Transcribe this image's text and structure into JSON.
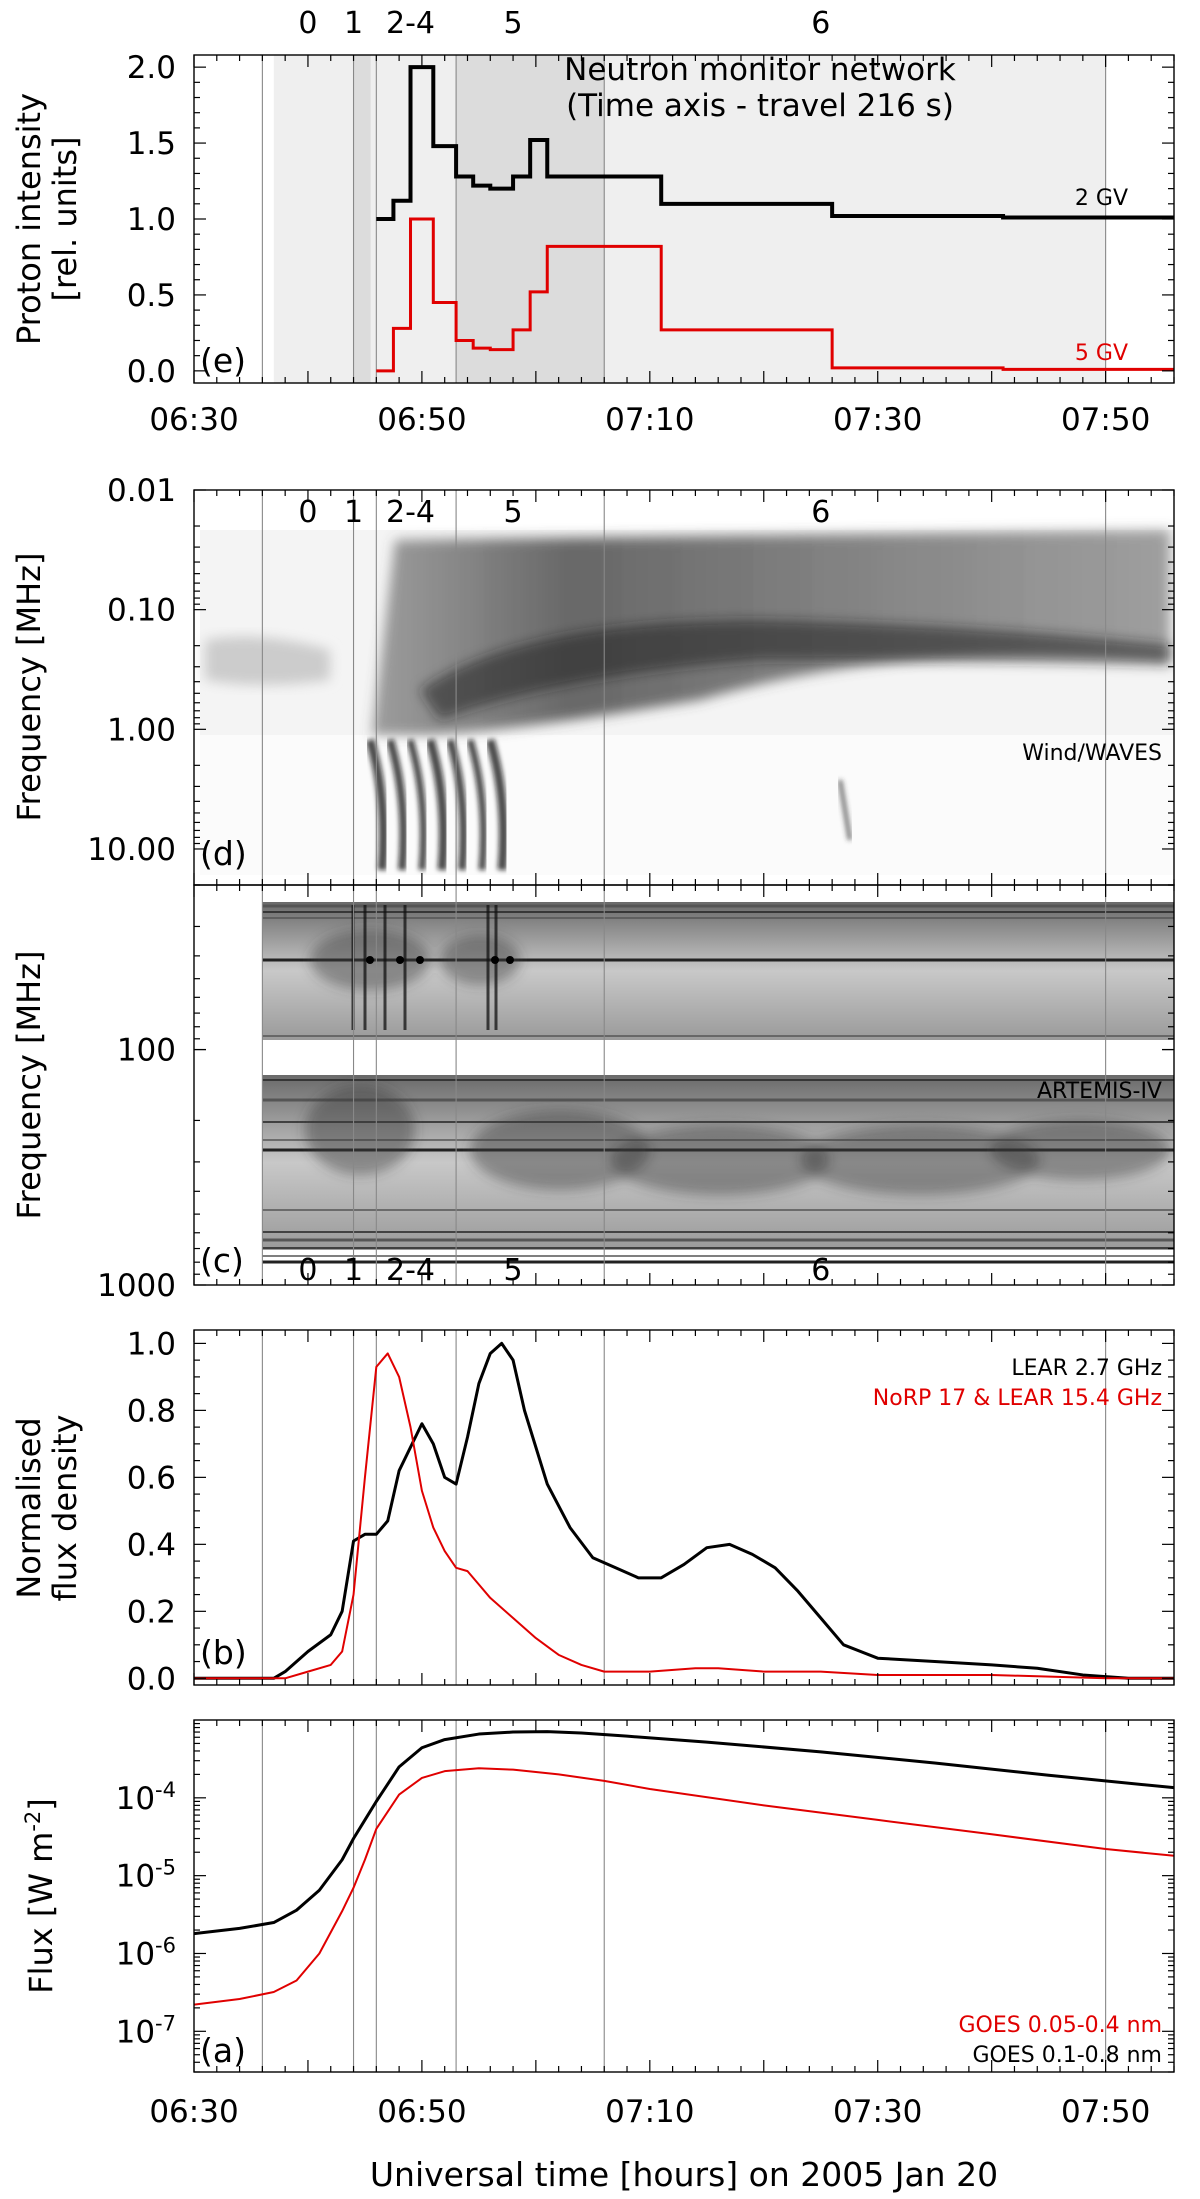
{
  "figure": {
    "x_axis_title": "Universal time [hours] on 2005 Jan 20",
    "x_tick_labels": [
      "06:30",
      "06:50",
      "07:10",
      "07:30",
      "07:50"
    ],
    "colors": {
      "black": "#000000",
      "red": "#e00000",
      "shade_light": "#efefef",
      "shade_mid": "#dcdcdc",
      "vlines": "#888888"
    }
  },
  "chart_data": [
    {
      "panel": "e",
      "type": "line",
      "panel_label": "(e)",
      "ylabel_lines": [
        "Proton intensity",
        "[rel. units]"
      ],
      "ylim": [
        -0.08,
        2.08
      ],
      "yticks": [
        0.0,
        0.5,
        1.0,
        1.5,
        2.0
      ],
      "ytick_labels": [
        "0.0",
        "0.5",
        "1.0",
        "1.5",
        "2.0"
      ],
      "xlim": [
        "06:30",
        "07:56"
      ],
      "x_top_tick_labels": [
        "06:30",
        "06:50",
        "07:10",
        "07:30",
        "07:50"
      ],
      "title_lines": [
        "Neutron monitor network",
        "(Time axis - travel 216 s)"
      ],
      "phase_labels": [
        {
          "label": "0",
          "t": "06:40"
        },
        {
          "label": "1",
          "t": "06:44"
        },
        {
          "label": "2-4",
          "t": "06:49"
        },
        {
          "label": "5",
          "t": "06:58"
        },
        {
          "label": "6",
          "t": "07:25"
        }
      ],
      "shaded_bands": [
        {
          "start": "06:37",
          "end": "07:50",
          "shade": "light"
        },
        {
          "start": "06:44",
          "end": "06:45.5",
          "shade": "mid"
        },
        {
          "start": "06:53",
          "end": "07:06",
          "shade": "mid"
        }
      ],
      "series": [
        {
          "name": "2 GV",
          "color": "#000000",
          "step": true,
          "x": [
            "06:46",
            "06:47.5",
            "06:49",
            "06:51",
            "06:53",
            "06:54.5",
            "06:56",
            "06:58",
            "06:59.5",
            "07:01",
            "07:11",
            "07:26",
            "07:41",
            "07:56"
          ],
          "y": [
            1.0,
            1.12,
            2.0,
            1.48,
            1.28,
            1.22,
            1.2,
            1.28,
            1.52,
            1.28,
            1.1,
            1.02,
            1.01,
            1.01
          ]
        },
        {
          "name": "5 GV",
          "color": "#e00000",
          "step": true,
          "x": [
            "06:46",
            "06:47.5",
            "06:49",
            "06:51",
            "06:53",
            "06:54.5",
            "06:56",
            "06:58",
            "06:59.5",
            "07:01",
            "07:11",
            "07:26",
            "07:41",
            "07:56"
          ],
          "y": [
            0.0,
            0.28,
            1.0,
            0.45,
            0.2,
            0.15,
            0.14,
            0.27,
            0.52,
            0.82,
            0.27,
            0.02,
            0.01,
            0.01
          ]
        }
      ]
    },
    {
      "panel": "d",
      "type": "heatmap",
      "panel_label": "(d)",
      "ylabel": "Frequency [MHz]",
      "yscale": "log",
      "y_reversed": true,
      "ylim": [
        0.01,
        20
      ],
      "yticks": [
        0.01,
        0.1,
        1.0,
        10.0
      ],
      "ytick_labels": [
        "0.01",
        "0.10",
        "1.00",
        "10.00"
      ],
      "xlim": [
        "06:30",
        "07:56"
      ],
      "instrument": "Wind/WAVES",
      "phase_labels": [
        {
          "label": "0",
          "t": "06:40"
        },
        {
          "label": "1",
          "t": "06:44"
        },
        {
          "label": "2-4",
          "t": "06:49"
        },
        {
          "label": "5",
          "t": "06:58"
        },
        {
          "label": "6",
          "t": "07:25"
        }
      ]
    },
    {
      "panel": "c",
      "type": "heatmap",
      "panel_label": "(c)",
      "ylabel": "Frequency [MHz]",
      "yscale": "log",
      "y_reversed": true,
      "ylim": [
        20,
        1000
      ],
      "yticks": [
        100,
        1000
      ],
      "ytick_labels": [
        "100",
        "1000"
      ],
      "xlim": [
        "06:30",
        "07:56"
      ],
      "instrument": "ARTEMIS-IV",
      "phase_labels": [
        {
          "label": "0",
          "t": "06:40"
        },
        {
          "label": "1",
          "t": "06:44"
        },
        {
          "label": "2-4",
          "t": "06:49"
        },
        {
          "label": "5",
          "t": "06:58"
        },
        {
          "label": "6",
          "t": "07:25"
        }
      ]
    },
    {
      "panel": "b",
      "type": "line",
      "panel_label": "(b)",
      "ylabel_lines": [
        "Normalised",
        "flux density"
      ],
      "ylim": [
        -0.02,
        1.04
      ],
      "yticks": [
        0.0,
        0.2,
        0.4,
        0.6,
        0.8,
        1.0
      ],
      "ytick_labels": [
        "0.0",
        "0.2",
        "0.4",
        "0.6",
        "0.8",
        "1.0"
      ],
      "xlim": [
        "06:30",
        "07:56"
      ],
      "series": [
        {
          "name": "LEAR 2.7 GHz",
          "color": "#000000",
          "x": [
            "06:30",
            "06:37",
            "06:38",
            "06:40",
            "06:42",
            "06:43",
            "06:44",
            "06:45",
            "06:46",
            "06:47",
            "06:48",
            "06:50",
            "06:51",
            "06:52",
            "06:53",
            "06:54",
            "06:55",
            "06:56",
            "06:57",
            "06:58",
            "06:59",
            "07:01",
            "07:03",
            "07:05",
            "07:07",
            "07:09",
            "07:11",
            "07:13",
            "07:15",
            "07:17",
            "07:19",
            "07:21",
            "07:23",
            "07:25",
            "07:27",
            "07:30",
            "07:35",
            "07:40",
            "07:44",
            "07:48",
            "07:52",
            "07:56"
          ],
          "y": [
            0.0,
            0.0,
            0.02,
            0.08,
            0.13,
            0.2,
            0.41,
            0.43,
            0.43,
            0.47,
            0.62,
            0.76,
            0.7,
            0.6,
            0.58,
            0.72,
            0.88,
            0.97,
            1.0,
            0.95,
            0.8,
            0.58,
            0.45,
            0.36,
            0.33,
            0.3,
            0.3,
            0.34,
            0.39,
            0.4,
            0.37,
            0.33,
            0.26,
            0.18,
            0.1,
            0.06,
            0.05,
            0.04,
            0.03,
            0.01,
            0.0,
            0.0
          ]
        },
        {
          "name": "NoRP 17 & LEAR 15.4 GHz",
          "color": "#e00000",
          "x": [
            "06:30",
            "06:38",
            "06:40",
            "06:42",
            "06:43",
            "06:44",
            "06:45",
            "06:46",
            "06:47",
            "06:48",
            "06:49",
            "06:50",
            "06:51",
            "06:52",
            "06:53",
            "06:54",
            "06:55",
            "06:56",
            "06:58",
            "07:00",
            "07:02",
            "07:04",
            "07:06",
            "07:10",
            "07:14",
            "07:16",
            "07:20",
            "07:25",
            "07:30",
            "07:40",
            "07:50",
            "07:56"
          ],
          "y": [
            0.0,
            0.0,
            0.02,
            0.04,
            0.08,
            0.25,
            0.6,
            0.93,
            0.97,
            0.9,
            0.75,
            0.56,
            0.45,
            0.38,
            0.33,
            0.32,
            0.28,
            0.24,
            0.18,
            0.12,
            0.07,
            0.04,
            0.02,
            0.02,
            0.03,
            0.03,
            0.02,
            0.02,
            0.01,
            0.01,
            0.0,
            0.0
          ]
        }
      ]
    },
    {
      "panel": "a",
      "type": "line",
      "panel_label": "(a)",
      "ylabel": "Flux [W m^-2]",
      "yscale": "log",
      "ylim": [
        3e-08,
        0.001
      ],
      "yticks": [
        1e-07,
        1e-06,
        1e-05,
        0.0001
      ],
      "ytick_labels": [
        "10^-7",
        "10^-6",
        "10^-5",
        "10^-4"
      ],
      "xlim": [
        "06:30",
        "07:56"
      ],
      "series": [
        {
          "name": "GOES 0.05-0.4 nm",
          "color": "#e00000",
          "x": [
            "06:30",
            "06:34",
            "06:37",
            "06:39",
            "06:41",
            "06:43",
            "06:44",
            "06:45",
            "06:46",
            "06:48",
            "06:50",
            "06:52",
            "06:55",
            "06:58",
            "07:02",
            "07:06",
            "07:10",
            "07:20",
            "07:30",
            "07:40",
            "07:50",
            "07:56"
          ],
          "y": [
            2.2e-07,
            2.6e-07,
            3.2e-07,
            4.5e-07,
            1e-06,
            3.5e-06,
            7e-06,
            1.6e-05,
            4e-05,
            0.00011,
            0.00018,
            0.00022,
            0.00024,
            0.00023,
            0.0002,
            0.000165,
            0.00013,
            8e-05,
            5.2e-05,
            3.4e-05,
            2.2e-05,
            1.8e-05
          ]
        },
        {
          "name": "GOES 0.1-0.8 nm",
          "color": "#000000",
          "x": [
            "06:30",
            "06:34",
            "06:37",
            "06:39",
            "06:41",
            "06:43",
            "06:44",
            "06:45",
            "06:46",
            "06:48",
            "06:50",
            "06:52",
            "06:55",
            "06:58",
            "07:01",
            "07:04",
            "07:08",
            "07:15",
            "07:25",
            "07:35",
            "07:45",
            "07:56"
          ],
          "y": [
            1.8e-06,
            2.1e-06,
            2.5e-06,
            3.6e-06,
            6.5e-06,
            1.6e-05,
            3e-05,
            5.2e-05,
            9e-05,
            0.00025,
            0.00044,
            0.00056,
            0.00066,
            0.0007,
            0.00071,
            0.00068,
            0.00062,
            0.00052,
            0.00039,
            0.00028,
            0.000195,
            0.000135
          ]
        }
      ]
    }
  ],
  "vertical_lines": [
    "06:36",
    "06:44",
    "06:46",
    "06:53",
    "07:06",
    "07:50"
  ],
  "legends": {
    "e_2gv": "2 GV",
    "e_5gv": "5 GV",
    "d_instrument": "Wind/WAVES",
    "c_instrument": "ARTEMIS-IV",
    "b_black": "LEAR 2.7 GHz",
    "b_red": "NoRP 17 & LEAR 15.4 GHz",
    "a_red": "GOES 0.05-0.4 nm",
    "a_black": "GOES 0.1-0.8 nm"
  }
}
